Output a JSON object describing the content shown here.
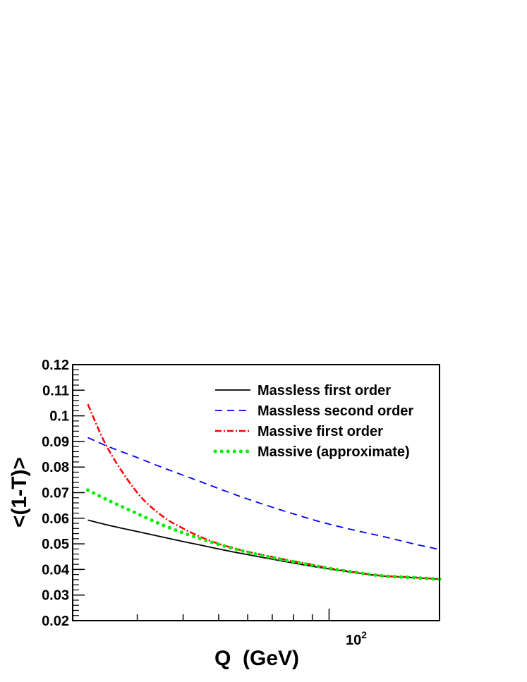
{
  "chart_data": {
    "type": "line",
    "xlabel": "Q  (GeV)",
    "ylabel": "<(1-T)>",
    "x_scale": "log",
    "xlim": [
      20,
      200
    ],
    "ylim": [
      0.02,
      0.12
    ],
    "grid": false,
    "legend_position": "top-right",
    "y_ticks": [
      "0.02",
      "0.03",
      "0.04",
      "0.05",
      "0.06",
      "0.07",
      "0.08",
      "0.09",
      "0.1",
      "0.11",
      "0.12"
    ],
    "x_tick_label": {
      "base": "10",
      "exponent": "2"
    },
    "x": [
      22,
      25,
      30,
      35,
      40,
      45,
      50,
      55,
      60,
      70,
      80,
      91,
      100,
      120,
      140,
      170,
      200
    ],
    "series": [
      {
        "name": "Massless first order",
        "color": "#000000",
        "style": "solid",
        "values": [
          0.0593,
          0.0573,
          0.0548,
          0.0527,
          0.0509,
          0.0494,
          0.048,
          0.0468,
          0.0458,
          0.044,
          0.0425,
          0.0411,
          0.0402,
          0.0386,
          0.0374,
          0.0368,
          0.0362
        ]
      },
      {
        "name": "Massless second order",
        "color": "#0000ff",
        "style": "dashed",
        "values": [
          0.0915,
          0.088,
          0.0837,
          0.0799,
          0.0768,
          0.0741,
          0.0716,
          0.0694,
          0.0675,
          0.0643,
          0.0617,
          0.0593,
          0.0577,
          0.055,
          0.0529,
          0.05,
          0.0478
        ]
      },
      {
        "name": "Massive first order",
        "color": "#ff0000",
        "style": "dashdot",
        "values": [
          0.1045,
          0.087,
          0.07,
          0.061,
          0.056,
          0.0525,
          0.05,
          0.0483,
          0.0469,
          0.0449,
          0.0432,
          0.0417,
          0.0405,
          0.0388,
          0.0375,
          0.0369,
          0.0362
        ]
      },
      {
        "name": "Massive (approximate)",
        "color": "#00ee00",
        "style": "dotted",
        "values": [
          0.071,
          0.067,
          0.0618,
          0.0575,
          0.0543,
          0.0518,
          0.0498,
          0.0481,
          0.0467,
          0.0446,
          0.043,
          0.0415,
          0.0404,
          0.0387,
          0.0375,
          0.0368,
          0.0362
        ]
      }
    ]
  }
}
